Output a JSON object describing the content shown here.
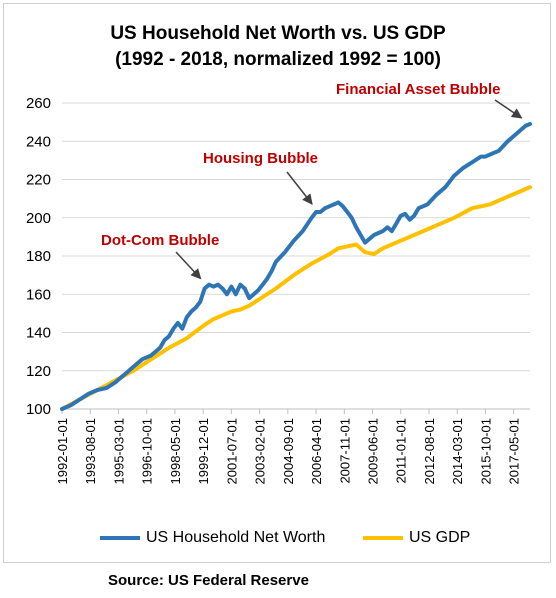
{
  "chart_data": {
    "type": "line",
    "title_line1": "US Household Net Worth vs. US GDP",
    "title_line2": "(1992 - 2018, normalized 1992 = 100)",
    "ylim": [
      100,
      260
    ],
    "yticks": [
      100,
      120,
      140,
      160,
      180,
      200,
      220,
      240,
      260
    ],
    "xlim": [
      1992.0,
      2018.25
    ],
    "xtick_labels": [
      "1992-01-01",
      "1993-08-01",
      "1995-03-01",
      "1996-10-01",
      "1998-05-01",
      "1999-12-01",
      "2001-07-01",
      "2003-02-01",
      "2004-09-01",
      "2006-04-01",
      "2007-11-01",
      "2009-06-01",
      "2011-01-01",
      "2012-08-01",
      "2014-03-01",
      "2015-10-01",
      "2017-05-01"
    ],
    "grid": "horizontal",
    "legend_position": "bottom",
    "series": [
      {
        "name": "US Household Net Worth",
        "color": "#2e75b6",
        "points": [
          [
            1992.0,
            100
          ],
          [
            1992.5,
            102
          ],
          [
            1993.0,
            105
          ],
          [
            1993.5,
            108
          ],
          [
            1994.0,
            110
          ],
          [
            1994.5,
            111
          ],
          [
            1995.0,
            114
          ],
          [
            1995.5,
            118
          ],
          [
            1996.0,
            122
          ],
          [
            1996.5,
            126
          ],
          [
            1997.0,
            128
          ],
          [
            1997.5,
            132
          ],
          [
            1997.75,
            136
          ],
          [
            1998.0,
            138
          ],
          [
            1998.25,
            142
          ],
          [
            1998.5,
            145
          ],
          [
            1998.75,
            142
          ],
          [
            1999.0,
            148
          ],
          [
            1999.25,
            151
          ],
          [
            1999.5,
            153
          ],
          [
            1999.75,
            156
          ],
          [
            2000.0,
            163
          ],
          [
            2000.25,
            165
          ],
          [
            2000.5,
            164
          ],
          [
            2000.75,
            165
          ],
          [
            2001.0,
            163
          ],
          [
            2001.25,
            160
          ],
          [
            2001.5,
            164
          ],
          [
            2001.75,
            160
          ],
          [
            2002.0,
            165
          ],
          [
            2002.25,
            163
          ],
          [
            2002.5,
            158
          ],
          [
            2002.75,
            160
          ],
          [
            2003.0,
            162
          ],
          [
            2003.25,
            165
          ],
          [
            2003.5,
            168
          ],
          [
            2003.75,
            172
          ],
          [
            2004.0,
            177
          ],
          [
            2004.5,
            182
          ],
          [
            2005.0,
            188
          ],
          [
            2005.5,
            193
          ],
          [
            2006.0,
            200
          ],
          [
            2006.25,
            203
          ],
          [
            2006.5,
            203
          ],
          [
            2006.75,
            205
          ],
          [
            2007.0,
            206
          ],
          [
            2007.25,
            207
          ],
          [
            2007.5,
            208
          ],
          [
            2007.75,
            206
          ],
          [
            2008.0,
            203
          ],
          [
            2008.25,
            200
          ],
          [
            2008.5,
            195
          ],
          [
            2008.75,
            191
          ],
          [
            2009.0,
            187
          ],
          [
            2009.25,
            189
          ],
          [
            2009.5,
            191
          ],
          [
            2010.0,
            193
          ],
          [
            2010.25,
            195
          ],
          [
            2010.5,
            193
          ],
          [
            2010.75,
            197
          ],
          [
            2011.0,
            201
          ],
          [
            2011.25,
            202
          ],
          [
            2011.5,
            199
          ],
          [
            2011.75,
            201
          ],
          [
            2012.0,
            205
          ],
          [
            2012.5,
            207
          ],
          [
            2013.0,
            212
          ],
          [
            2013.5,
            216
          ],
          [
            2014.0,
            222
          ],
          [
            2014.5,
            226
          ],
          [
            2015.0,
            229
          ],
          [
            2015.5,
            232
          ],
          [
            2015.75,
            232
          ],
          [
            2016.0,
            233
          ],
          [
            2016.5,
            235
          ],
          [
            2017.0,
            240
          ],
          [
            2017.5,
            244
          ],
          [
            2018.0,
            248
          ],
          [
            2018.25,
            249
          ]
        ]
      },
      {
        "name": "US GDP",
        "color": "#ffc000",
        "points": [
          [
            1992.0,
            100
          ],
          [
            1993.0,
            105
          ],
          [
            1994.0,
            110
          ],
          [
            1995.0,
            115
          ],
          [
            1996.0,
            120
          ],
          [
            1997.0,
            126
          ],
          [
            1998.0,
            132
          ],
          [
            1999.0,
            137
          ],
          [
            2000.0,
            144
          ],
          [
            2000.5,
            147
          ],
          [
            2001.0,
            149
          ],
          [
            2001.5,
            151
          ],
          [
            2002.0,
            152
          ],
          [
            2002.5,
            154
          ],
          [
            2003.0,
            157
          ],
          [
            2004.0,
            163
          ],
          [
            2005.0,
            170
          ],
          [
            2006.0,
            176
          ],
          [
            2007.0,
            181
          ],
          [
            2007.5,
            184
          ],
          [
            2008.0,
            185
          ],
          [
            2008.5,
            186
          ],
          [
            2009.0,
            182
          ],
          [
            2009.5,
            181
          ],
          [
            2010.0,
            184
          ],
          [
            2011.0,
            188
          ],
          [
            2012.0,
            192
          ],
          [
            2013.0,
            196
          ],
          [
            2014.0,
            200
          ],
          [
            2015.0,
            205
          ],
          [
            2016.0,
            207
          ],
          [
            2017.0,
            211
          ],
          [
            2018.0,
            215
          ],
          [
            2018.25,
            216
          ]
        ]
      }
    ],
    "annotations": [
      {
        "label": "Dot-Com Bubble",
        "x": 2000.0,
        "y": 164
      },
      {
        "label": "Housing Bubble",
        "x": 2006.25,
        "y": 203
      },
      {
        "label": "Financial Asset Bubble",
        "x": 2018.0,
        "y": 248
      }
    ],
    "source": "Source: US Federal Reserve"
  }
}
